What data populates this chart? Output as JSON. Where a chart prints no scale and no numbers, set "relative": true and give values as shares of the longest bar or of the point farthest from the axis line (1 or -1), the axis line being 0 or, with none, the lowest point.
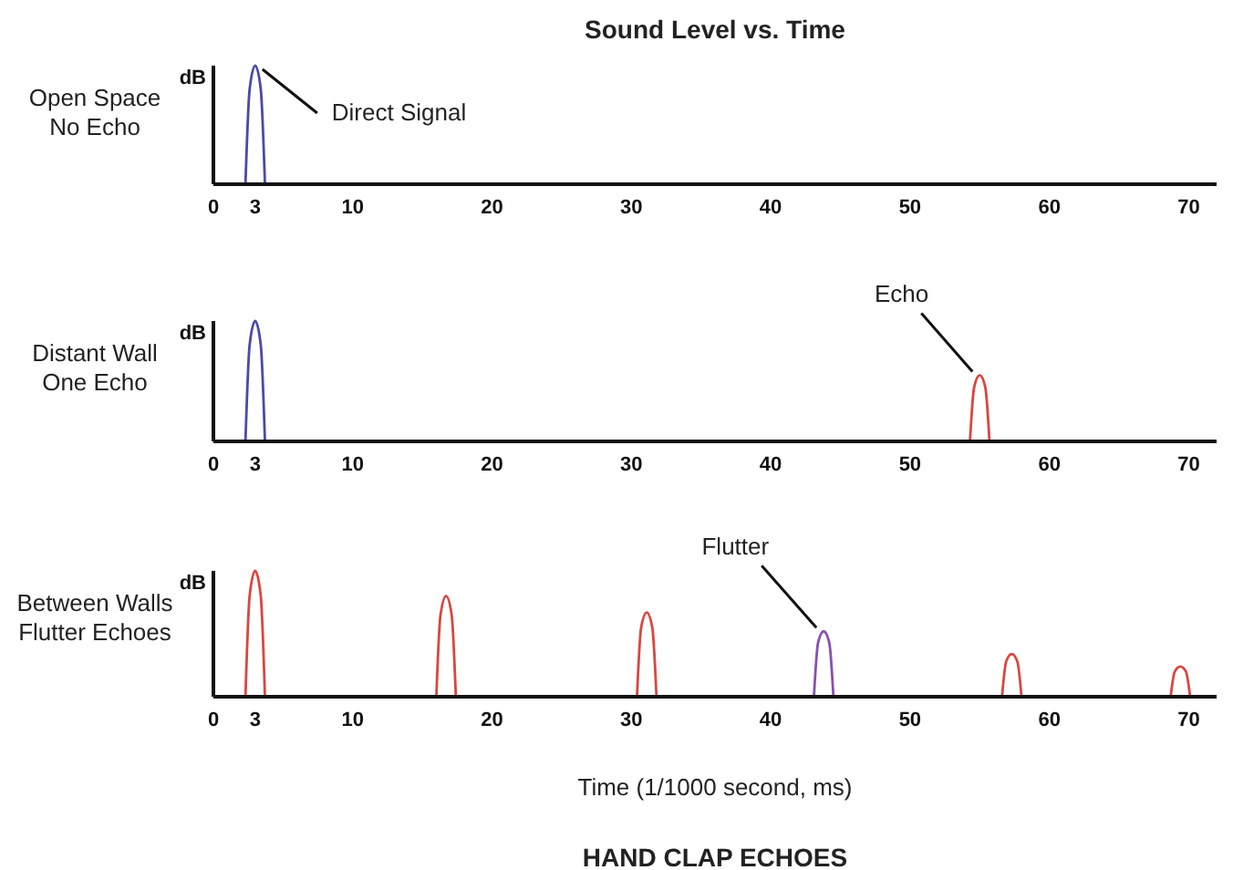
{
  "chart_data": [
    {
      "type": "line",
      "title": "Sound Level vs. Time",
      "subtitle": "Open Space\nNo Echo",
      "ylabel": "dB",
      "relative": true,
      "marker": "none",
      "xlim": [
        0,
        72
      ],
      "xticks": [
        0,
        3,
        10,
        20,
        30,
        40,
        50,
        60,
        70
      ],
      "series": [
        {
          "color": "#4a4aa8",
          "x": [
            2.3,
            2.6,
            3,
            3.4,
            3.7
          ],
          "values": [
            0,
            0.8,
            1,
            0.8,
            0
          ]
        }
      ],
      "annotations": [
        {
          "text": "Direct Signal",
          "x": 3,
          "y": 1
        }
      ]
    },
    {
      "type": "line",
      "subtitle": "Distant Wall\nOne Echo",
      "ylabel": "dB",
      "relative": true,
      "marker": "none",
      "xlim": [
        0,
        72
      ],
      "xticks": [
        0,
        3,
        10,
        20,
        30,
        40,
        50,
        60,
        70
      ],
      "series": [
        {
          "color": "#4a4aa8",
          "x": [
            2.3,
            2.6,
            3,
            3.4,
            3.7
          ],
          "values": [
            0,
            0.8,
            1,
            0.8,
            0
          ]
        },
        {
          "color": "#d9473f",
          "x": [
            54.3,
            54.6,
            55,
            55.4,
            55.7
          ],
          "values": [
            0,
            0.45,
            0.55,
            0.45,
            0
          ]
        }
      ],
      "annotations": [
        {
          "text": "Echo",
          "x": 55,
          "y": 0.55
        }
      ]
    },
    {
      "type": "line",
      "subtitle": "Between Walls\nFlutter Echoes",
      "ylabel": "dB",
      "xlabel": "Time (1/1000 second, ms)",
      "relative": true,
      "marker": "none",
      "xlim": [
        0,
        72
      ],
      "xticks": [
        0,
        3,
        10,
        20,
        30,
        40,
        50,
        60,
        70
      ],
      "series": [
        {
          "color": "#d9473f",
          "x": [
            2.3,
            2.6,
            3,
            3.4,
            3.7,
            10,
            16,
            16.3,
            16.7,
            17.1,
            17.4,
            24,
            30.4,
            30.7,
            31.1,
            31.5,
            31.8,
            50,
            56.6,
            56.9,
            57.3,
            57.7,
            58,
            63,
            68.7,
            69,
            69.4,
            69.8,
            70.1
          ],
          "values": [
            0,
            0.8,
            1,
            0.8,
            0,
            null,
            0,
            0.65,
            0.8,
            0.65,
            0,
            null,
            0,
            0.55,
            0.67,
            0.55,
            0,
            null,
            0,
            0.28,
            0.34,
            0.28,
            0,
            null,
            0,
            0.2,
            0.24,
            0.2,
            0
          ]
        },
        {
          "color": "#8a4fb0",
          "x": [
            43.1,
            43.4,
            43.8,
            44.2,
            44.5
          ],
          "values": [
            0,
            0.43,
            0.52,
            0.43,
            0
          ]
        }
      ],
      "annotations": [
        {
          "text": "Flutter",
          "x": 43.8,
          "y": 0.52
        },
        "HAND CLAP ECHOES"
      ]
    }
  ]
}
